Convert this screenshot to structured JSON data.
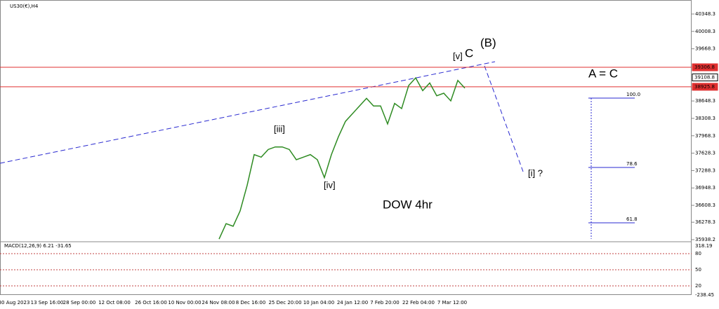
{
  "chart_data": {
    "type": "line",
    "symbol": "US30(€),H4",
    "macd_label": "MACD(12,26,9) 6.21 -31.65",
    "x_labels": [
      "30 Aug 2023",
      "13 Sep 16:00",
      "28 Sep 00:00",
      "12 Oct 08:00",
      "26 Oct 16:00",
      "10 Nov 00:00",
      "24 Nov 08:00",
      "8 Dec 16:00",
      "25 Dec 20:00",
      "10 Jan 04:00",
      "24 Jan 12:00",
      "7 Feb 20:00",
      "22 Feb 04:00",
      "7 Mar 12:00"
    ],
    "ylim": [
      35897,
      40622
    ],
    "yticks": [
      40348.3,
      40008.3,
      39668.3,
      38648.3,
      38308.3,
      37968.3,
      37628.3,
      37288.3,
      36948.3,
      36608.3,
      36278.3,
      35938.2
    ],
    "levels": [
      {
        "value": 39306.8,
        "color": "#e03030"
      },
      {
        "value": 39108.8,
        "color": "#000000"
      },
      {
        "value": 38925.8,
        "color": "#e03030"
      }
    ],
    "series": [
      {
        "name": "US30",
        "color": "#2e8b22",
        "values": [
          35950,
          36250,
          36200,
          36500,
          37000,
          37600,
          37550,
          37700,
          37750,
          37750,
          37700,
          37500,
          37550,
          37600,
          37500,
          37150,
          37600,
          37950,
          38250,
          38400,
          38550,
          38700,
          38550,
          38550,
          38200,
          38600,
          38500,
          38950,
          39100,
          38850,
          39000,
          38750,
          38800,
          38650,
          39050,
          38900
        ]
      }
    ],
    "macd_ticks": [
      "318.19",
      "80",
      "50",
      "20",
      "-238.45"
    ],
    "annotations": {
      "wave_b": "(B)",
      "wave_c": "C",
      "wave_v": "[v]",
      "wave_iii": "[iii]",
      "wave_iv": "[iv]",
      "title": "DOW 4hr",
      "wave_i": "[i] ?",
      "a_eq_c": "A = C"
    },
    "fib_levels": [
      "100.0",
      "78.6",
      "61.8"
    ]
  }
}
